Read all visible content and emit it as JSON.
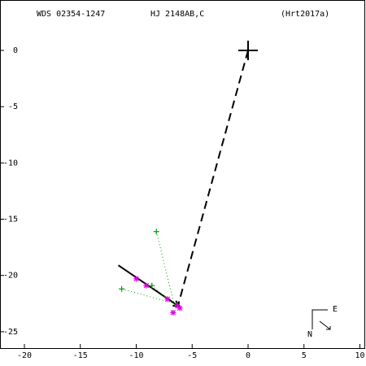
{
  "chart_data": {
    "type": "scatter",
    "title": "WDS 02354-1247",
    "subtitle": "HJ 2148AB,C",
    "reference": "(Hrt2017a)",
    "xlim": [
      -21.6,
      10.4
    ],
    "ylim": [
      -26.6,
      3.9
    ],
    "xticks": [
      -20,
      -15,
      -10,
      -5,
      0,
      5,
      10
    ],
    "yticks": [
      0,
      -5,
      -10,
      -15,
      -20,
      -25
    ],
    "compass": {
      "east": "E",
      "north": "N"
    },
    "series": [
      {
        "style": "dashed",
        "color": "#000000",
        "x": [
          0,
          -6.3
        ],
        "values": [
          0,
          -22.8
        ]
      },
      {
        "style": "solid",
        "color": "#000000",
        "x": [
          -11.6,
          -6.1
        ],
        "values": [
          -19.1,
          -22.8
        ]
      },
      {
        "style": "dotted",
        "color": "#00a000",
        "x": [
          -8.2,
          -6.6,
          null,
          -11.3,
          -6.9,
          null,
          -8.6,
          -6.5
        ],
        "values": [
          -16.1,
          -22.6,
          null,
          -21.2,
          -22.4,
          null,
          -20.9,
          -22.7
        ]
      },
      {
        "marker": "cross",
        "size": 12,
        "color": "#000000",
        "x": [
          0
        ],
        "values": [
          0
        ]
      },
      {
        "marker": "plus",
        "size": 3.5,
        "color": "#00a000",
        "x": [
          -8.2,
          -11.3,
          -8.6
        ],
        "values": [
          -16.1,
          -21.2,
          -20.9
        ]
      },
      {
        "marker": "star",
        "size": 3.5,
        "color": "#e000e0",
        "x": [
          -10.0,
          -9.1,
          -7.2,
          -6.7,
          -6.3,
          -6.1
        ],
        "values": [
          -20.3,
          -20.9,
          -22.1,
          -23.3,
          -22.7,
          -22.9
        ]
      }
    ]
  }
}
